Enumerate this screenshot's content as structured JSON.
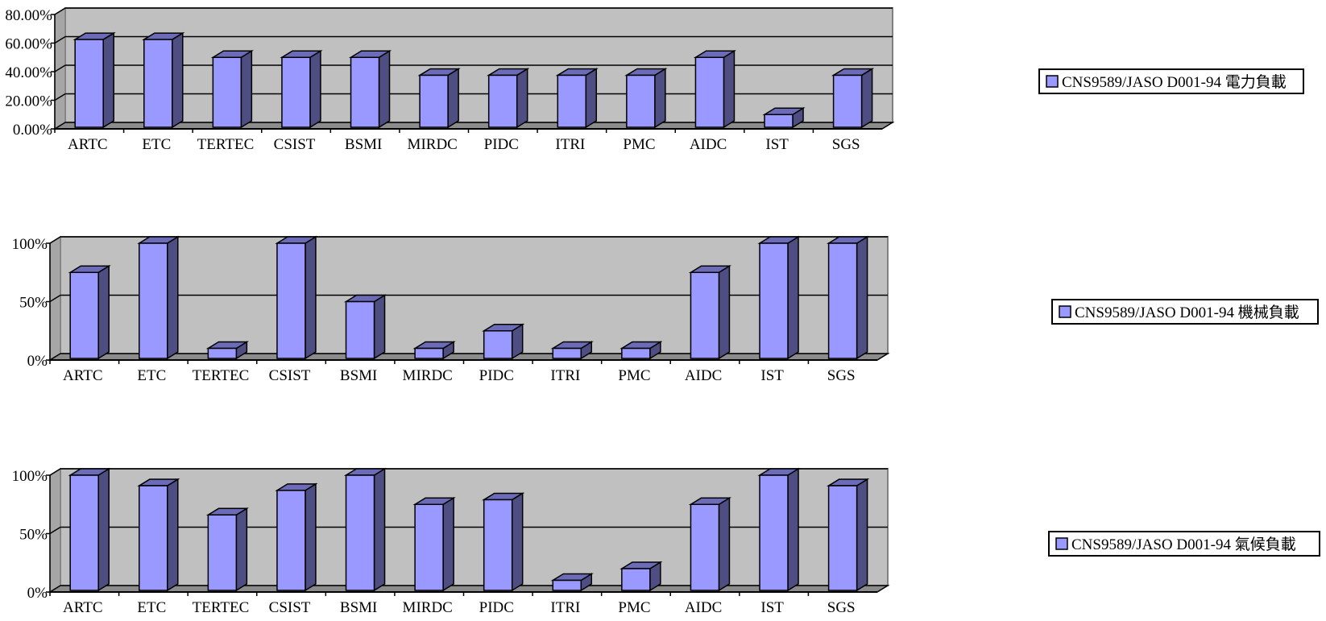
{
  "colors": {
    "bar_front": "#9999ff",
    "bar_side": "#4e4e82",
    "bar_top": "#6b6bb8",
    "plot_back": "#c0c0c0",
    "plot_side": "#a6a6a6",
    "plot_floor": "#8c8c8c"
  },
  "chart_data": [
    {
      "type": "bar",
      "categories": [
        "ARTC",
        "ETC",
        "TERTEC",
        "CSIST",
        "BSMI",
        "MIRDC",
        "PIDC",
        "ITRI",
        "PMC",
        "AIDC",
        "IST",
        "SGS"
      ],
      "series": [
        {
          "name": "CNS9589/JASO D001-94 電力負載",
          "values": [
            62.5,
            62.5,
            50,
            50,
            50,
            37.5,
            37.5,
            37.5,
            37.5,
            50,
            10,
            37.5
          ]
        }
      ],
      "ylim": [
        0,
        80
      ],
      "yticks": [
        "0.00%",
        "20.00%",
        "40.00%",
        "60.00%",
        "80.00%"
      ],
      "grid": true,
      "legend": "right",
      "three_d": true
    },
    {
      "type": "bar",
      "categories": [
        "ARTC",
        "ETC",
        "TERTEC",
        "CSIST",
        "BSMI",
        "MIRDC",
        "PIDC",
        "ITRI",
        "PMC",
        "AIDC",
        "IST",
        "SGS"
      ],
      "series": [
        {
          "name": "CNS9589/JASO D001-94 機械負載",
          "values": [
            75,
            100,
            10,
            100,
            50,
            10,
            25,
            10,
            10,
            75,
            100,
            100
          ]
        }
      ],
      "ylim": [
        0,
        100
      ],
      "yticks": [
        "0%",
        "50%",
        "100%"
      ],
      "grid": true,
      "legend": "right",
      "three_d": true
    },
    {
      "type": "bar",
      "categories": [
        "ARTC",
        "ETC",
        "TERTEC",
        "CSIST",
        "BSMI",
        "MIRDC",
        "PIDC",
        "ITRI",
        "PMC",
        "AIDC",
        "IST",
        "SGS"
      ],
      "series": [
        {
          "name": "CNS9589/JASO D001-94 氣候負載",
          "values": [
            100,
            91,
            66,
            87,
            100,
            75,
            79,
            10,
            20,
            75,
            100,
            91
          ]
        }
      ],
      "ylim": [
        0,
        100
      ],
      "yticks": [
        "0%",
        "50%",
        "100%"
      ],
      "grid": true,
      "legend": "right",
      "three_d": true
    }
  ]
}
